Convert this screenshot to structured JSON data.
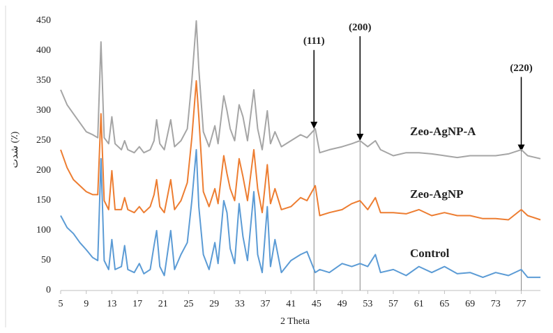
{
  "chart_data": {
    "type": "line",
    "x_label": "2 Theta",
    "y_label": "شدت (٪)",
    "x": [
      5,
      6,
      7,
      8,
      9,
      10,
      10.8,
      11.3,
      11.8,
      12.5,
      13,
      13.5,
      14.5,
      15,
      15.5,
      16.5,
      17.3,
      18,
      19,
      19.6,
      20,
      20.5,
      21.2,
      22.2,
      22.8,
      23.8,
      24.8,
      25.5,
      26.2,
      26.6,
      27.3,
      28.2,
      29.1,
      29.6,
      30.5,
      31,
      31.5,
      32.2,
      32.9,
      33.5,
      34.2,
      35.2,
      35.8,
      36.5,
      37.3,
      37.8,
      38.5,
      39.5,
      41,
      42.5,
      43.5,
      44.8,
      45.5,
      47,
      49,
      50.5,
      51.8,
      53,
      54.2,
      55,
      57,
      59,
      61,
      63,
      65,
      67,
      69,
      71,
      73,
      75,
      77,
      78,
      80
    ],
    "series": [
      {
        "name": "Zeo-AgNP-A",
        "color": "#a5a5a5",
        "values": [
          335,
          310,
          295,
          280,
          265,
          260,
          255,
          415,
          255,
          245,
          290,
          245,
          235,
          250,
          235,
          230,
          240,
          230,
          235,
          250,
          285,
          245,
          235,
          285,
          240,
          250,
          270,
          350,
          450,
          370,
          265,
          240,
          275,
          245,
          325,
          300,
          270,
          250,
          310,
          290,
          250,
          335,
          270,
          235,
          300,
          245,
          265,
          240,
          250,
          260,
          255,
          270,
          230,
          235,
          240,
          245,
          250,
          240,
          250,
          235,
          225,
          230,
          230,
          228,
          225,
          222,
          225,
          225,
          225,
          228,
          235,
          225,
          220
        ]
      },
      {
        "name": "Zeo-AgNP",
        "color": "#ed7d31",
        "values": [
          235,
          205,
          185,
          175,
          165,
          160,
          160,
          295,
          150,
          135,
          200,
          135,
          135,
          155,
          135,
          130,
          140,
          130,
          140,
          160,
          185,
          140,
          130,
          185,
          135,
          150,
          180,
          255,
          350,
          290,
          165,
          140,
          170,
          145,
          225,
          195,
          170,
          150,
          220,
          190,
          150,
          235,
          170,
          130,
          210,
          145,
          170,
          135,
          140,
          155,
          150,
          175,
          125,
          130,
          135,
          145,
          150,
          135,
          155,
          130,
          130,
          128,
          135,
          125,
          130,
          125,
          125,
          120,
          120,
          118,
          135,
          125,
          118
        ]
      },
      {
        "name": "Control",
        "color": "#5b9bd5",
        "values": [
          125,
          105,
          95,
          80,
          68,
          55,
          50,
          220,
          50,
          35,
          85,
          35,
          40,
          75,
          35,
          30,
          45,
          28,
          35,
          75,
          100,
          40,
          25,
          100,
          35,
          60,
          80,
          150,
          235,
          140,
          60,
          35,
          80,
          45,
          150,
          130,
          70,
          45,
          145,
          90,
          50,
          165,
          60,
          30,
          140,
          40,
          85,
          30,
          50,
          60,
          65,
          30,
          35,
          30,
          45,
          40,
          45,
          40,
          60,
          30,
          35,
          25,
          40,
          30,
          40,
          28,
          30,
          22,
          30,
          25,
          35,
          22,
          22
        ]
      }
    ],
    "annotations": [
      {
        "text": "(111)",
        "x": 44.6,
        "y": 270
      },
      {
        "text": "(200)",
        "x": 51.8,
        "y": 250
      },
      {
        "text": "(220)",
        "x": 77,
        "y": 232
      }
    ],
    "xlim": [
      5,
      80
    ],
    "ylim": [
      0,
      450
    ],
    "xticks": [
      5,
      9,
      13,
      17,
      21,
      25,
      29,
      33,
      37,
      41,
      45,
      49,
      53,
      57,
      61,
      65,
      69,
      73,
      77
    ],
    "yticks": [
      0,
      50,
      100,
      150,
      200,
      250,
      300,
      350,
      400,
      450
    ]
  }
}
